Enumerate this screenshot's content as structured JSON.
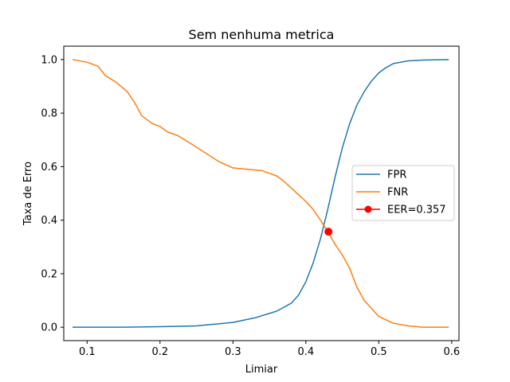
{
  "chart_data": {
    "type": "line",
    "title": "Sem nenhuma metrica",
    "xlabel": "Limiar",
    "ylabel": "Taxa de Erro",
    "xlim": [
      0.068,
      0.61
    ],
    "ylim": [
      -0.05,
      1.05
    ],
    "xticks": [
      0.1,
      0.2,
      0.3,
      0.4,
      0.5,
      0.6
    ],
    "xtick_labels": [
      "0.1",
      "0.2",
      "0.3",
      "0.4",
      "0.5",
      "0.6"
    ],
    "yticks": [
      0.0,
      0.2,
      0.4,
      0.6,
      0.8,
      1.0
    ],
    "ytick_labels": [
      "0.0",
      "0.2",
      "0.4",
      "0.6",
      "0.8",
      "1.0"
    ],
    "grid": false,
    "legend_position": "center-right",
    "series": [
      {
        "name": "FPR",
        "color": "#1f77b4",
        "x": [
          0.08,
          0.15,
          0.2,
          0.25,
          0.3,
          0.33,
          0.36,
          0.38,
          0.39,
          0.4,
          0.41,
          0.42,
          0.43,
          0.44,
          0.45,
          0.46,
          0.47,
          0.48,
          0.49,
          0.5,
          0.51,
          0.52,
          0.54,
          0.56,
          0.596
        ],
        "y": [
          0.0,
          0.0,
          0.002,
          0.005,
          0.018,
          0.035,
          0.06,
          0.09,
          0.12,
          0.17,
          0.24,
          0.33,
          0.44,
          0.56,
          0.67,
          0.76,
          0.83,
          0.88,
          0.92,
          0.95,
          0.97,
          0.985,
          0.995,
          0.998,
          1.0
        ]
      },
      {
        "name": "FNR",
        "color": "#ff7f0e",
        "x": [
          0.08,
          0.1,
          0.115,
          0.125,
          0.14,
          0.155,
          0.165,
          0.175,
          0.19,
          0.2,
          0.21,
          0.225,
          0.24,
          0.26,
          0.28,
          0.3,
          0.32,
          0.34,
          0.35,
          0.36,
          0.37,
          0.38,
          0.39,
          0.4,
          0.41,
          0.42,
          0.43,
          0.44,
          0.45,
          0.46,
          0.47,
          0.48,
          0.49,
          0.5,
          0.52,
          0.54,
          0.56,
          0.596
        ],
        "y": [
          1.0,
          0.99,
          0.975,
          0.94,
          0.915,
          0.88,
          0.84,
          0.79,
          0.76,
          0.75,
          0.73,
          0.715,
          0.69,
          0.655,
          0.62,
          0.595,
          0.59,
          0.585,
          0.575,
          0.565,
          0.545,
          0.52,
          0.495,
          0.47,
          0.44,
          0.4,
          0.357,
          0.31,
          0.27,
          0.22,
          0.15,
          0.1,
          0.07,
          0.04,
          0.015,
          0.005,
          0.0,
          0.0
        ]
      }
    ],
    "marker": {
      "name": "EER=0.357",
      "color": "#ff0000",
      "x": 0.431,
      "y": 0.357
    }
  }
}
